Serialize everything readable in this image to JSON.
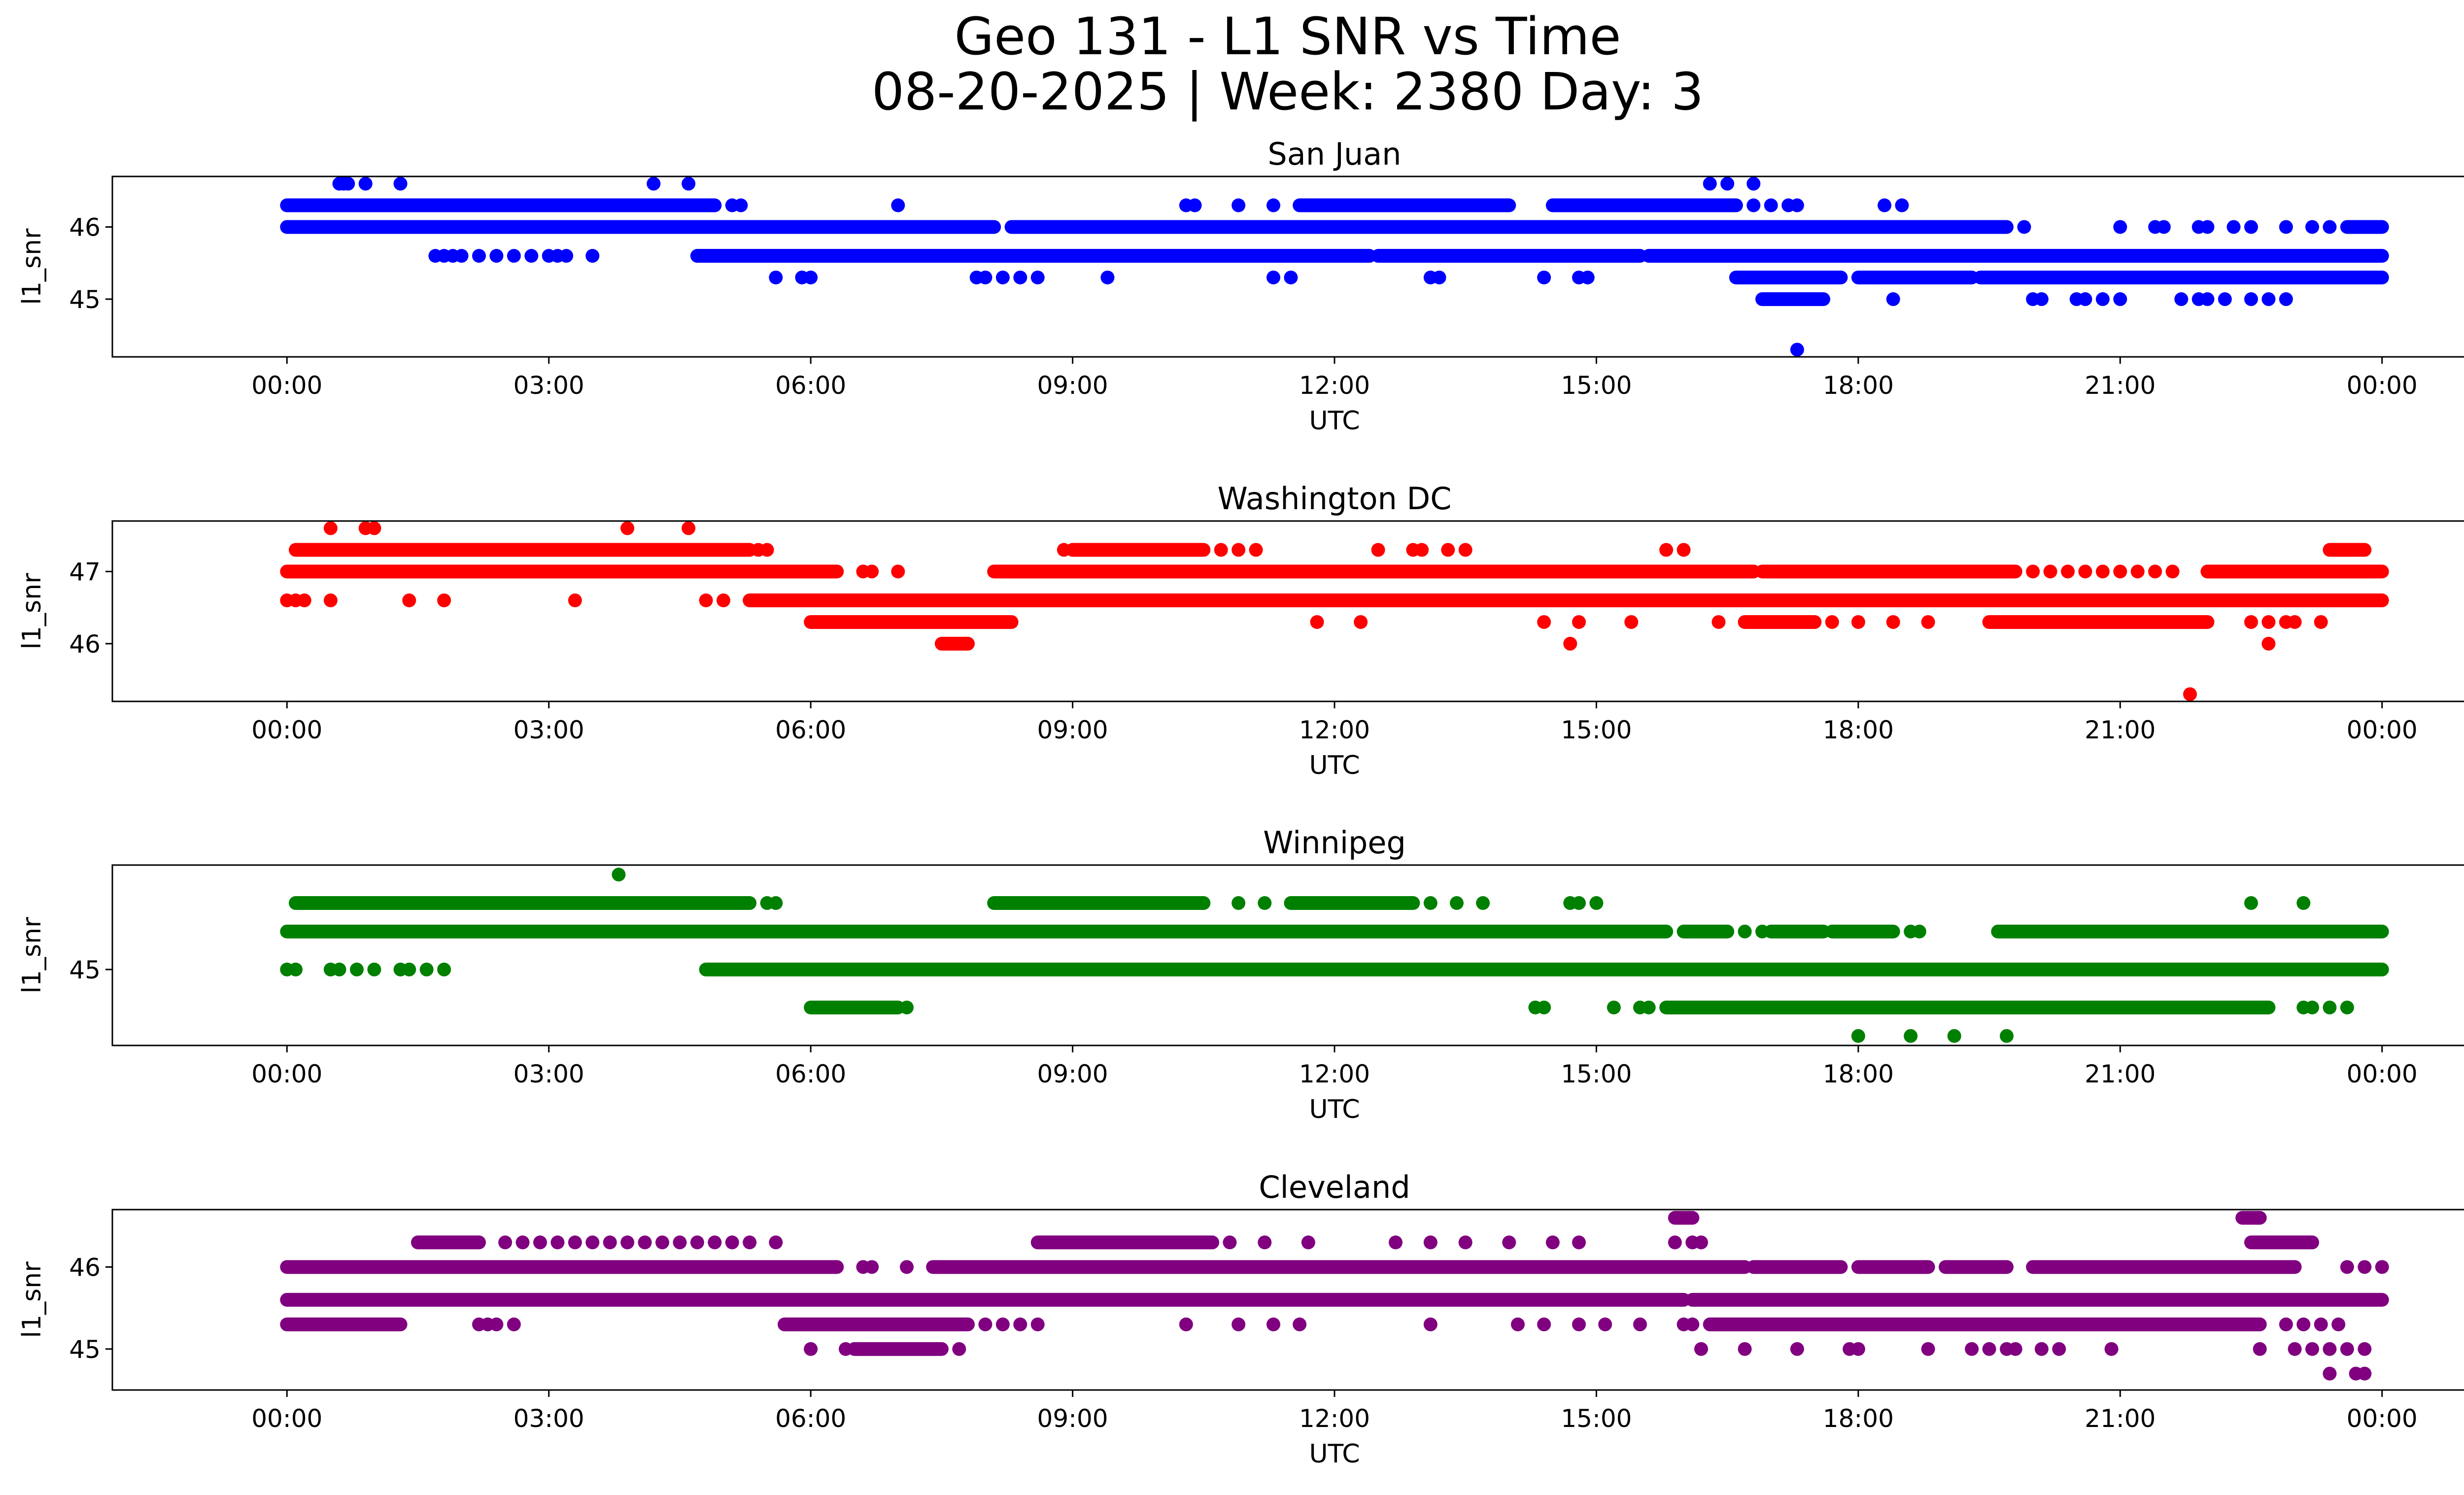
{
  "figure": {
    "title_line1": "Geo 131 - L1 SNR vs Time",
    "title_line2": "08-20-2025 | Week: 2380 Day: 3"
  },
  "chart_data": [
    {
      "type": "scatter",
      "title": "San Juan",
      "xlabel": "UTC",
      "ylabel": "l1_snr",
      "color": "#0000ff",
      "xlim": [
        -2,
        26
      ],
      "ylim": [
        44.2,
        46.7
      ],
      "xticks": [
        0,
        3,
        6,
        9,
        12,
        15,
        18,
        21,
        24
      ],
      "xtick_labels": [
        "00:00",
        "03:00",
        "06:00",
        "09:00",
        "12:00",
        "15:00",
        "18:00",
        "21:00",
        "00:00"
      ],
      "yticks": [
        45,
        46
      ],
      "ytick_labels": [
        "45",
        "46"
      ],
      "levels": [
        {
          "y": 46.0,
          "ranges": [
            [
              0.0,
              8.1
            ],
            [
              8.3,
              19.7
            ],
            [
              23.6,
              24.0
            ]
          ],
          "points": [
            19.9,
            21.0,
            21.4,
            21.5,
            21.9,
            22.0,
            22.3,
            22.5,
            22.9,
            23.2,
            23.4
          ]
        },
        {
          "y": 46.3,
          "ranges": [
            [
              0.0,
              4.9
            ],
            [
              11.6,
              14.0
            ],
            [
              14.5,
              16.6
            ]
          ],
          "points": [
            5.1,
            5.2,
            7.0,
            10.3,
            10.4,
            10.9,
            11.3,
            16.8,
            17.0,
            17.2,
            17.3,
            18.3,
            18.5
          ]
        },
        {
          "y": 45.6,
          "ranges": [
            [
              4.7,
              12.4
            ],
            [
              12.5,
              15.5
            ],
            [
              15.6,
              24.0
            ]
          ],
          "points": [
            1.7,
            1.8,
            1.9,
            2.0,
            2.2,
            2.4,
            2.6,
            2.8,
            3.0,
            3.1,
            3.2,
            3.5
          ]
        },
        {
          "y": 45.3,
          "ranges": [
            [
              16.6,
              17.8
            ],
            [
              18.0,
              19.3
            ],
            [
              19.4,
              24.0
            ]
          ],
          "points": [
            5.6,
            5.9,
            6.0,
            7.9,
            8.0,
            8.2,
            8.4,
            8.6,
            9.4,
            11.3,
            11.5,
            13.1,
            13.2,
            14.4,
            14.8,
            14.9
          ]
        },
        {
          "y": 45.0,
          "ranges": [
            [
              16.9,
              17.6
            ]
          ],
          "points": [
            18.4,
            20.0,
            20.1,
            20.5,
            20.6,
            20.8,
            21.0,
            21.7,
            21.9,
            22.0,
            22.2,
            22.5,
            22.7,
            22.9
          ]
        },
        {
          "y": 46.6,
          "ranges": [],
          "points": [
            0.6,
            0.65,
            0.7,
            0.9,
            1.3,
            4.2,
            4.6,
            16.3,
            16.5,
            16.8
          ]
        },
        {
          "y": 44.3,
          "ranges": [],
          "points": [
            17.3
          ]
        }
      ]
    },
    {
      "type": "scatter",
      "title": "Washington DC",
      "xlabel": "UTC",
      "ylabel": "l1_snr",
      "color": "#ff0000",
      "xlim": [
        -2,
        26
      ],
      "ylim": [
        45.2,
        47.7
      ],
      "xticks": [
        0,
        3,
        6,
        9,
        12,
        15,
        18,
        21,
        24
      ],
      "xtick_labels": [
        "00:00",
        "03:00",
        "06:00",
        "09:00",
        "12:00",
        "15:00",
        "18:00",
        "21:00",
        "00:00"
      ],
      "yticks": [
        46,
        47
      ],
      "ytick_labels": [
        "46",
        "47"
      ],
      "levels": [
        {
          "y": 47.0,
          "ranges": [
            [
              0.0,
              6.3
            ],
            [
              8.1,
              16.8
            ],
            [
              16.9,
              19.8
            ],
            [
              22.0,
              24.0
            ]
          ],
          "points": [
            6.6,
            6.7,
            7.0,
            20.0,
            20.2,
            20.4,
            20.6,
            20.8,
            21.0,
            21.2,
            21.4,
            21.6
          ]
        },
        {
          "y": 47.3,
          "ranges": [
            [
              0.1,
              5.3
            ],
            [
              9.0,
              10.5
            ],
            [
              23.4,
              23.8
            ]
          ],
          "points": [
            5.4,
            5.5,
            8.9,
            10.7,
            10.9,
            11.1,
            12.5,
            12.9,
            13.0,
            13.3,
            13.5,
            15.8,
            16.0
          ]
        },
        {
          "y": 46.6,
          "ranges": [
            [
              5.3,
              24.0
            ]
          ],
          "points": [
            0.0,
            0.1,
            0.2,
            0.5,
            1.4,
            1.8,
            3.3,
            4.8,
            5.0
          ]
        },
        {
          "y": 46.3,
          "ranges": [
            [
              6.0,
              8.3
            ],
            [
              16.7,
              17.5
            ],
            [
              19.5,
              22.0
            ]
          ],
          "points": [
            11.8,
            12.3,
            14.4,
            14.8,
            15.4,
            16.4,
            17.7,
            18.0,
            18.4,
            18.8,
            22.5,
            22.7,
            22.9,
            23.0,
            23.3
          ]
        },
        {
          "y": 46.0,
          "ranges": [
            [
              7.5,
              7.8
            ]
          ],
          "points": [
            14.7,
            22.7
          ]
        },
        {
          "y": 47.6,
          "ranges": [],
          "points": [
            0.5,
            0.9,
            1.0,
            3.9,
            4.6
          ]
        },
        {
          "y": 45.3,
          "ranges": [],
          "points": [
            21.8
          ]
        }
      ]
    },
    {
      "type": "scatter",
      "title": "Winnipeg",
      "xlabel": "UTC",
      "ylabel": "l1_snr",
      "color": "#008000",
      "xlim": [
        -2,
        26
      ],
      "ylim": [
        44.2,
        46.1
      ],
      "xticks": [
        0,
        3,
        6,
        9,
        12,
        15,
        18,
        21,
        24
      ],
      "xtick_labels": [
        "00:00",
        "03:00",
        "06:00",
        "09:00",
        "12:00",
        "15:00",
        "18:00",
        "21:00",
        "00:00"
      ],
      "yticks": [
        45
      ],
      "ytick_labels": [
        "45"
      ],
      "levels": [
        {
          "y": 45.4,
          "ranges": [
            [
              0.0,
              15.8
            ],
            [
              16.0,
              16.5
            ],
            [
              17.0,
              17.6
            ],
            [
              17.7,
              18.4
            ],
            [
              19.6,
              24.0
            ]
          ],
          "points": [
            16.7,
            16.9,
            18.6,
            18.7
          ]
        },
        {
          "y": 45.0,
          "ranges": [
            [
              4.8,
              24.0
            ]
          ],
          "points": [
            0.0,
            0.1,
            0.5,
            0.6,
            0.8,
            1.0,
            1.3,
            1.4,
            1.6,
            1.8
          ]
        },
        {
          "y": 45.7,
          "ranges": [
            [
              0.1,
              5.3
            ],
            [
              8.1,
              10.5
            ],
            [
              11.5,
              12.9
            ]
          ],
          "points": [
            5.5,
            5.6,
            10.9,
            11.2,
            13.1,
            13.4,
            13.7,
            14.7,
            14.8,
            15.0
          ]
        },
        {
          "y": 44.6,
          "ranges": [
            [
              6.0,
              7.0
            ],
            [
              15.8,
              22.7
            ]
          ],
          "points": [
            7.1,
            14.3,
            14.4,
            15.2,
            15.5,
            15.6,
            23.1,
            23.2,
            23.4,
            23.6
          ]
        },
        {
          "y": 46.0,
          "ranges": [],
          "points": [
            3.8
          ]
        },
        {
          "y": 44.3,
          "ranges": [],
          "points": [
            18.0,
            18.6,
            19.1,
            19.7
          ]
        },
        {
          "y": 45.7,
          "ranges": [],
          "points": [
            22.5,
            23.1
          ]
        }
      ]
    },
    {
      "type": "scatter",
      "title": "Cleveland",
      "xlabel": "UTC",
      "ylabel": "l1_snr",
      "color": "#800080",
      "xlim": [
        -2,
        26
      ],
      "ylim": [
        44.5,
        46.7
      ],
      "xticks": [
        0,
        3,
        6,
        9,
        12,
        15,
        18,
        21,
        24
      ],
      "xtick_labels": [
        "00:00",
        "03:00",
        "06:00",
        "09:00",
        "12:00",
        "15:00",
        "18:00",
        "21:00",
        "00:00"
      ],
      "yticks": [
        45,
        46
      ],
      "ytick_labels": [
        "45",
        "46"
      ],
      "levels": [
        {
          "y": 46.0,
          "ranges": [
            [
              0.0,
              6.3
            ],
            [
              7.4,
              16.7
            ],
            [
              16.8,
              17.8
            ],
            [
              18.0,
              18.8
            ],
            [
              19.0,
              19.7
            ],
            [
              20.0,
              23.0
            ]
          ],
          "points": [
            6.6,
            6.7,
            7.1,
            23.6,
            23.8,
            24.0
          ]
        },
        {
          "y": 45.6,
          "ranges": [
            [
              0.0,
              16.0
            ],
            [
              16.1,
              24.0
            ]
          ],
          "points": []
        },
        {
          "y": 45.3,
          "ranges": [
            [
              0.0,
              1.3
            ],
            [
              5.7,
              7.8
            ],
            [
              16.3,
              22.6
            ]
          ],
          "points": [
            2.2,
            2.3,
            2.4,
            2.6,
            8.0,
            8.2,
            8.4,
            8.6,
            10.3,
            10.9,
            11.3,
            11.6,
            13.1,
            14.1,
            14.4,
            14.8,
            15.1,
            15.5,
            16.0,
            16.1,
            22.9,
            23.1,
            23.3,
            23.5
          ]
        },
        {
          "y": 45.0,
          "ranges": [
            [
              6.5,
              7.5
            ]
          ],
          "points": [
            6.0,
            6.4,
            7.7,
            16.2,
            16.7,
            17.3,
            17.9,
            18.0,
            18.8,
            19.3,
            19.5,
            19.7,
            19.8,
            20.1,
            20.3,
            20.9,
            22.6,
            23.0,
            23.2,
            23.4,
            23.6,
            23.8
          ]
        },
        {
          "y": 46.3,
          "ranges": [
            [
              1.5,
              2.2
            ],
            [
              8.6,
              10.6
            ],
            [
              22.5,
              23.2
            ]
          ],
          "points": [
            2.5,
            2.7,
            2.9,
            3.1,
            3.3,
            3.5,
            3.7,
            3.9,
            4.1,
            4.3,
            4.5,
            4.7,
            4.9,
            5.1,
            5.3,
            5.6,
            10.8,
            11.2,
            11.7,
            12.7,
            13.1,
            13.5,
            14.0,
            14.5,
            14.8,
            15.9,
            16.1,
            16.2
          ]
        },
        {
          "y": 46.6,
          "ranges": [
            [
              15.9,
              16.1
            ],
            [
              22.4,
              22.6
            ]
          ],
          "points": []
        },
        {
          "y": 44.7,
          "ranges": [],
          "points": [
            23.4,
            23.7,
            23.8
          ]
        }
      ]
    }
  ]
}
